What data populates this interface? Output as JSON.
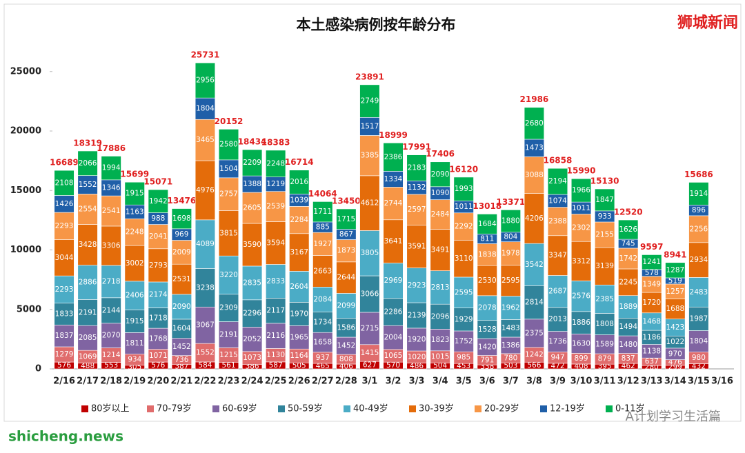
{
  "chart_data": {
    "type": "stacked-bar",
    "title": "本土感染病例按年龄分布",
    "source": "狮城新闻",
    "watermarks": [
      "shicheng.news",
      "A计划学习生活篇"
    ],
    "categories": [
      "2/16",
      "2/17",
      "2/18",
      "2/19",
      "2/20",
      "2/21",
      "2/22",
      "2/23",
      "2/24",
      "2/25",
      "2/26",
      "2/27",
      "2/28",
      "3/1",
      "3/2",
      "3/3",
      "3/4",
      "3/5",
      "3/6",
      "3/7",
      "3/8",
      "3/9",
      "3/10",
      "3/11",
      "3/12",
      "3/13",
      "3/14",
      "3/15",
      "3/16"
    ],
    "ylim": [
      0,
      28000
    ],
    "yticks": [
      0,
      5000,
      10000,
      15000,
      20000,
      25000
    ],
    "series": [
      {
        "name": "80岁以上",
        "color": "#c00000",
        "values": [
          576,
          488,
          553,
          305,
          576,
          387,
          584,
          561,
          386,
          587,
          505,
          465,
          406,
          627,
          570,
          486,
          504,
          453,
          338,
          503,
          566,
          472,
          408,
          395,
          462,
          280,
          299,
          432,
          null
        ]
      },
      {
        "name": "70-79岁",
        "color": "#e06c6c",
        "values": [
          1279,
          1069,
          1214,
          934,
          1071,
          736,
          1552,
          1215,
          1073,
          1130,
          1164,
          937,
          808,
          1415,
          1065,
          1020,
          1015,
          985,
          791,
          780,
          1242,
          947,
          899,
          879,
          837,
          637,
          476,
          980,
          null
        ]
      },
      {
        "name": "60-69岁",
        "color": "#8064a2",
        "values": [
          1837,
          2085,
          2070,
          1811,
          1768,
          1452,
          3067,
          2191,
          2052,
          2116,
          1965,
          1658,
          1452,
          2715,
          2004,
          1920,
          1823,
          1752,
          1420,
          1386,
          2375,
          1736,
          1630,
          1589,
          1480,
          1138,
          970,
          1804,
          null
        ]
      },
      {
        "name": "50-59岁",
        "color": "#31849b",
        "values": [
          1833,
          2191,
          2144,
          1915,
          1718,
          1604,
          3238,
          2309,
          2296,
          2117,
          1970,
          1734,
          1586,
          3066,
          2286,
          2139,
          2096,
          1929,
          1528,
          1483,
          2814,
          2013,
          1886,
          1808,
          1494,
          1186,
          1022,
          1987,
          null
        ]
      },
      {
        "name": "40-49岁",
        "color": "#4bacc6",
        "values": [
          2293,
          2886,
          2718,
          2406,
          2174,
          2090,
          4089,
          3220,
          2835,
          2833,
          2604,
          2084,
          2099,
          3805,
          2969,
          2923,
          2813,
          2595,
          2078,
          1962,
          3542,
          2687,
          2576,
          2385,
          1889,
          1468,
          1423,
          2483,
          null
        ]
      },
      {
        "name": "30-39岁",
        "color": "#e46c0a",
        "values": [
          3044,
          3428,
          3306,
          3002,
          2793,
          2531,
          4976,
          3815,
          3590,
          3594,
          3167,
          2663,
          2644,
          4612,
          3641,
          3591,
          3491,
          3110,
          2530,
          2595,
          4206,
          3347,
          3312,
          3139,
          2245,
          1720,
          1688,
          2934,
          null
        ]
      },
      {
        "name": "20-29岁",
        "color": "#f79646",
        "values": [
          2293,
          2554,
          2541,
          2248,
          2041,
          2009,
          3465,
          2757,
          2605,
          2539,
          2284,
          1927,
          1873,
          3385,
          2744,
          2597,
          2484,
          2292,
          1838,
          1978,
          3088,
          2388,
          2302,
          2155,
          1742,
          1349,
          1257,
          2256,
          null
        ]
      },
      {
        "name": "12-19岁",
        "color": "#1f5fa8",
        "values": [
          1426,
          1552,
          1346,
          1163,
          988,
          969,
          1804,
          1504,
          1388,
          1219,
          1039,
          885,
          867,
          1517,
          1334,
          1132,
          1090,
          1011,
          811,
          804,
          1473,
          1074,
          1011,
          933,
          745,
          578,
          519,
          896,
          null
        ]
      },
      {
        "name": "0-11岁",
        "color": "#00b050",
        "values": [
          2108,
          2066,
          1994,
          1915,
          1942,
          1698,
          2956,
          2580,
          2209,
          2248,
          2016,
          1711,
          1715,
          2749,
          2386,
          2183,
          2090,
          1993,
          1684,
          1880,
          2680,
          2194,
          1966,
          1847,
          1626,
          1241,
          1287,
          1914,
          null
        ]
      }
    ],
    "totals": [
      16689,
      18319,
      17886,
      15699,
      15071,
      13476,
      25731,
      20152,
      18434,
      18383,
      16714,
      14064,
      13450,
      23891,
      18999,
      17991,
      17406,
      16120,
      13018,
      13371,
      21986,
      16858,
      15990,
      15130,
      12520,
      9597,
      8941,
      15686,
      null
    ],
    "totals_color": "#e02020"
  }
}
